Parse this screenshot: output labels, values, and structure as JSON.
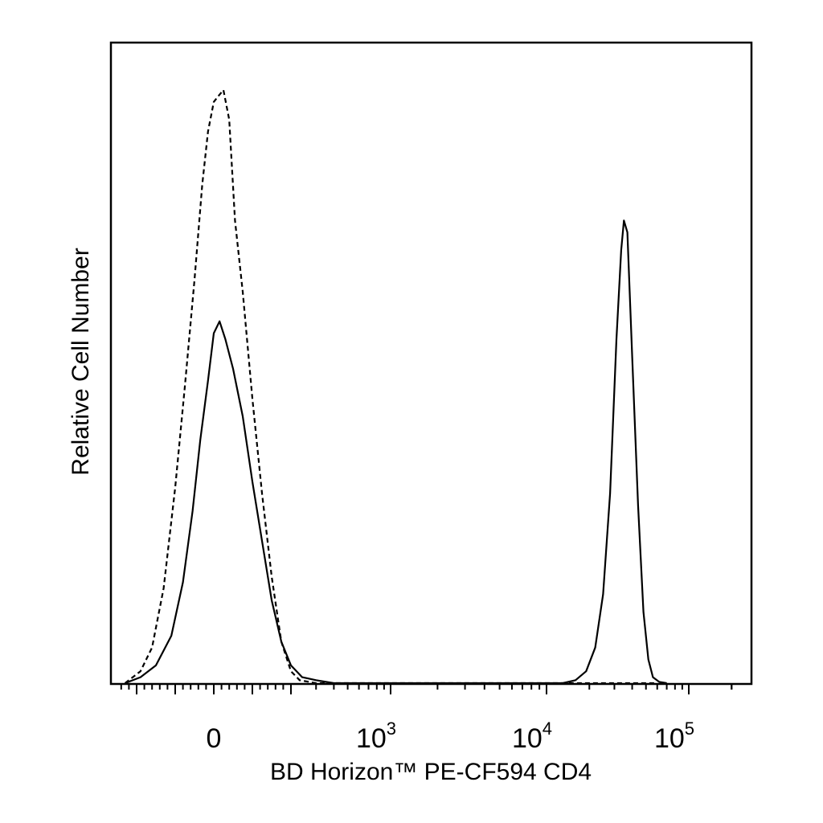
{
  "chart_data": {
    "type": "line",
    "title": "",
    "xlabel": "BD Horizon™ PE-CF594 CD4",
    "ylabel": "Relative Cell Number",
    "x_scale": "biexponential",
    "xlim": [
      -300,
      200000
    ],
    "ylim": [
      0,
      1
    ],
    "grid": false,
    "legend": "none",
    "x_tick_labels": [
      {
        "value": 0,
        "base": "0",
        "exp": ""
      },
      {
        "value": 1000,
        "base": "10",
        "exp": "3"
      },
      {
        "value": 10000,
        "base": "10",
        "exp": "4"
      },
      {
        "value": 100000,
        "base": "10",
        "exp": "5"
      }
    ],
    "series": [
      {
        "style": "dashed",
        "color": "#000000",
        "x": [
          -230,
          -190,
          -160,
          -130,
          -100,
          -75,
          -50,
          -30,
          -15,
          0,
          12,
          25,
          40,
          55,
          75,
          100,
          125,
          150,
          175,
          200,
          230,
          300,
          400,
          600,
          1000,
          3000,
          10000,
          30000,
          60000
        ],
        "y": [
          0.0,
          0.02,
          0.06,
          0.16,
          0.33,
          0.5,
          0.68,
          0.84,
          0.93,
          0.98,
          0.99,
          1.0,
          0.95,
          0.78,
          0.66,
          0.48,
          0.32,
          0.18,
          0.07,
          0.02,
          0.005,
          0.0,
          0.0,
          0.0,
          0.0,
          0.0,
          0.0,
          0.0,
          0.0
        ]
      },
      {
        "style": "solid",
        "color": "#000000",
        "x": [
          -230,
          -190,
          -150,
          -110,
          -80,
          -55,
          -35,
          -15,
          0,
          15,
          30,
          50,
          75,
          100,
          125,
          150,
          175,
          200,
          240,
          300,
          400,
          600,
          1000,
          3000,
          8000,
          13000,
          16000,
          19000,
          22000,
          25000,
          28000,
          31000,
          33500,
          35000,
          37000,
          40000,
          44000,
          48000,
          52000,
          56000,
          62000,
          70000
        ],
        "y": [
          0.0,
          0.01,
          0.03,
          0.08,
          0.17,
          0.29,
          0.41,
          0.51,
          0.59,
          0.61,
          0.58,
          0.53,
          0.45,
          0.34,
          0.24,
          0.14,
          0.07,
          0.03,
          0.01,
          0.005,
          0.0,
          0.0,
          0.0,
          0.0,
          0.0,
          0.0,
          0.005,
          0.02,
          0.06,
          0.15,
          0.32,
          0.58,
          0.73,
          0.78,
          0.76,
          0.55,
          0.3,
          0.12,
          0.04,
          0.01,
          0.002,
          0.0
        ]
      }
    ]
  }
}
